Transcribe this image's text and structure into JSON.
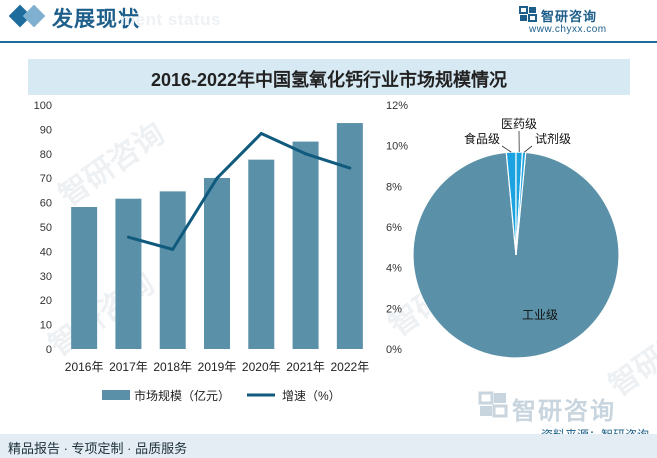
{
  "header": {
    "title": "发展现状",
    "subtitle": "ment status"
  },
  "brand": {
    "name": "智研咨询",
    "url": "www.chyxx.com"
  },
  "watermark": "智研咨询",
  "colors": {
    "bar": "#5b91a8",
    "line": "#105a7e",
    "pie_main": "#5b91a8",
    "pie_small": "#1aa3e0",
    "title_band": "#d7eaf4",
    "accent": "#1e6c9c"
  },
  "chart_data": [
    {
      "type": "bar",
      "title": "2016-2022年中国氢氧化钙行业市场规模情况",
      "categories": [
        "2016年",
        "2017年",
        "2018年",
        "2019年",
        "2020年",
        "2021年",
        "2022年"
      ],
      "series": [
        {
          "name": "市场规模（亿元）",
          "type": "bar",
          "axis": "left",
          "values": [
            58.2,
            61.6,
            64.6,
            70.1,
            77.6,
            85.0,
            92.6
          ]
        },
        {
          "name": "增速（%）",
          "type": "line",
          "axis": "right",
          "values": [
            null,
            5.5,
            4.9,
            8.4,
            10.6,
            9.6,
            8.9
          ]
        }
      ],
      "y_left": {
        "min": 0,
        "max": 100,
        "ticks": [
          "0",
          "10",
          "20",
          "30",
          "40",
          "50",
          "60",
          "70",
          "80",
          "90",
          "100"
        ]
      },
      "y_right": {
        "min": 0,
        "max": 12,
        "ticks": [
          "0%",
          "2%",
          "4%",
          "6%",
          "8%",
          "10%",
          "12%"
        ]
      },
      "legend_position": "bottom"
    },
    {
      "type": "pie",
      "labels": [
        "工业级",
        "食品级",
        "医药级",
        "试剂级"
      ],
      "values": [
        97.0,
        1.5,
        1.0,
        0.5
      ]
    }
  ],
  "footer": {
    "left_text": "精品报告 · 专项定制 · 品质服务",
    "source": "资料来源：智研咨询",
    "logo_text": "智研咨询"
  }
}
